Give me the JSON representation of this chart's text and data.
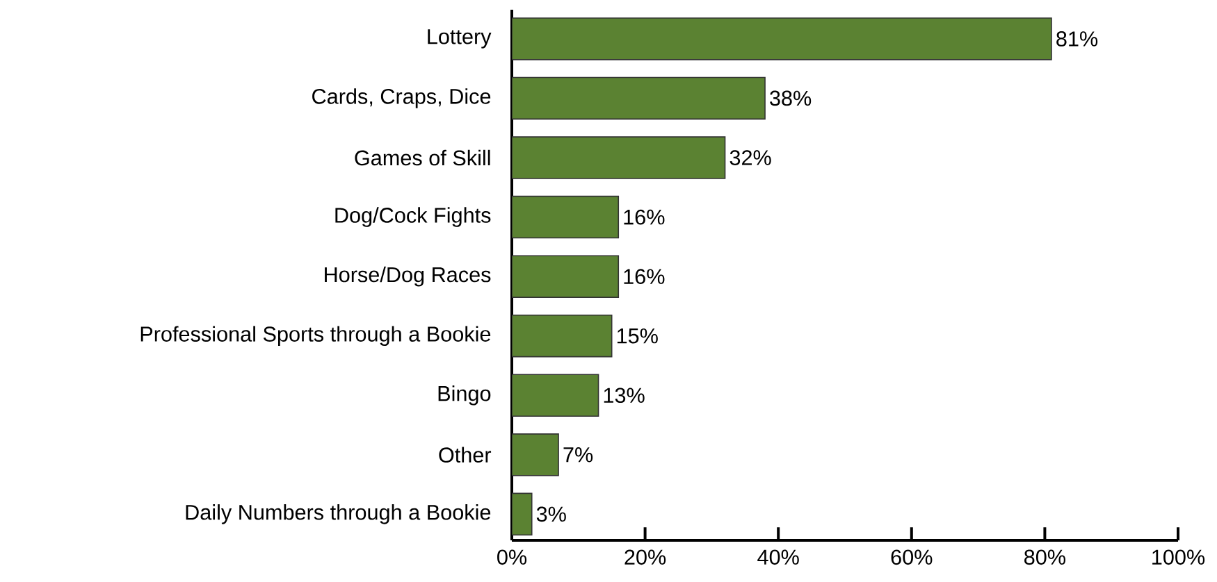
{
  "chart_data": {
    "type": "bar",
    "orientation": "horizontal",
    "categories": [
      "Lottery",
      "Cards, Craps, Dice",
      "Games of Skill",
      "Dog/Cock Fights",
      "Horse/Dog Races",
      "Professional Sports through a Bookie",
      "Bingo",
      "Other",
      "Daily Numbers through a Bookie"
    ],
    "values": [
      81,
      38,
      32,
      16,
      16,
      15,
      13,
      7,
      3
    ],
    "value_labels": [
      "81%",
      "38%",
      "32%",
      "16%",
      "16%",
      "15%",
      "13%",
      "7%",
      "3%"
    ],
    "color": "#5b8232",
    "xlim": [
      0,
      100
    ],
    "xticks": [
      {
        "value": 0,
        "label": "0%"
      },
      {
        "value": 20,
        "label": "20%"
      },
      {
        "value": 40,
        "label": "40%"
      },
      {
        "value": 60,
        "label": "60%"
      },
      {
        "value": 80,
        "label": "80%"
      },
      {
        "value": 100,
        "label": "100%"
      }
    ],
    "grid": false
  }
}
